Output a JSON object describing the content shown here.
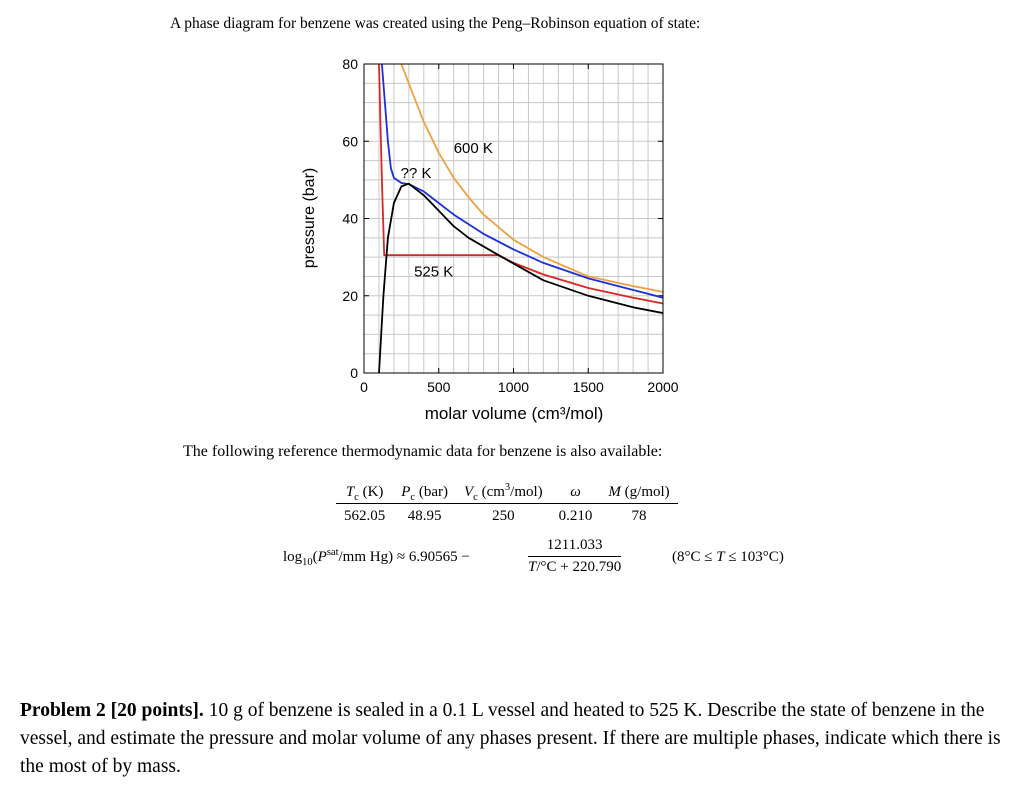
{
  "intro_text": "A phase diagram for benzene was created using the Peng–Robinson equation of state:",
  "chart_data": {
    "type": "line",
    "xlabel": "molar volume (cm³/mol)",
    "ylabel": "pressure (bar)",
    "xlim": [
      0,
      2000
    ],
    "ylim": [
      0,
      80
    ],
    "x_ticks": [
      "0",
      "500",
      "1000",
      "1500",
      "2000"
    ],
    "y_ticks": [
      "0",
      "20",
      "40",
      "60",
      "80"
    ],
    "grid": true,
    "annotations": [
      "600 K",
      "?? K",
      "525 K"
    ],
    "colors": {
      "600K": "#f0a040",
      "critical": "#1c2fd8",
      "525K": "#d42a22",
      "dome": "#000000"
    },
    "series": [
      {
        "name": "600 K",
        "x": [
          250,
          300,
          400,
          500,
          600,
          700,
          800,
          1000,
          1200,
          1500,
          1800,
          2000
        ],
        "y": [
          80,
          75,
          65,
          57,
          50.5,
          45.5,
          41,
          34.5,
          30,
          25,
          22.5,
          21
        ]
      },
      {
        "name": "?? K",
        "x": [
          120,
          140,
          160,
          180,
          200,
          250,
          300,
          400,
          600,
          800,
          1000,
          1200,
          1500,
          1800,
          2000
        ],
        "y": [
          80,
          70,
          60,
          53,
          50.5,
          49.2,
          48.9,
          47,
          41,
          36,
          32,
          28.5,
          24.5,
          21.5,
          19.5
        ]
      },
      {
        "name": "525 K",
        "x": [
          100,
          110,
          120,
          135,
          900,
          1000,
          1200,
          1500,
          1800,
          2000
        ],
        "y": [
          80,
          65,
          50,
          30.5,
          30.5,
          28.5,
          25.5,
          22,
          19.5,
          18
        ]
      },
      {
        "name": "",
        "x": [
          100,
          115,
          130,
          160,
          200,
          250,
          300,
          400,
          500,
          600,
          700,
          900,
          1200,
          1500,
          1800,
          2000
        ],
        "y": [
          0,
          10,
          20,
          35,
          44,
          48.3,
          49,
          46,
          42,
          38,
          35,
          30.5,
          24,
          20,
          17,
          15.5
        ]
      }
    ]
  },
  "reference_intro": "The following reference thermodynamic data for benzene is also available:",
  "reference_table": {
    "headers": {
      "tc_sym": "T",
      "tc_sub": "c",
      "tc_unit": " (K)",
      "pc_sym": "P",
      "pc_sub": "c",
      "pc_unit": " (bar)",
      "vc_sym": "V",
      "vc_sub": "c",
      "vc_unit_a": " (cm",
      "vc_unit_sup": "3",
      "vc_unit_b": "/mol)",
      "omega": "ω",
      "m_sym": "M",
      "m_unit": " (g/mol)"
    },
    "values": [
      "562.05",
      "48.95",
      "250",
      "0.210",
      "78"
    ]
  },
  "equation": {
    "lhs_a": "log",
    "lhs_sub": "10",
    "lhs_b": "(",
    "lhs_p": "P",
    "lhs_sup": "sat",
    "lhs_c": "/mm Hg) ≈ 6.90565 −",
    "numerator": "1211.033",
    "den_t": "T",
    "den_rest": "/°C + 220.790",
    "range_a": "(8°C ≤ ",
    "range_t1": "T",
    "range_b": " ≤ 103°C)"
  },
  "problem": {
    "label": "Problem 2 [20 points].",
    "text": " 10 g of benzene is sealed in a 0.1 L vessel and heated to 525 K. Describe the state of benzene in the vessel, and estimate the pressure and molar volume of any phases present. If there are multiple phases, indicate which there is the most of by mass."
  }
}
